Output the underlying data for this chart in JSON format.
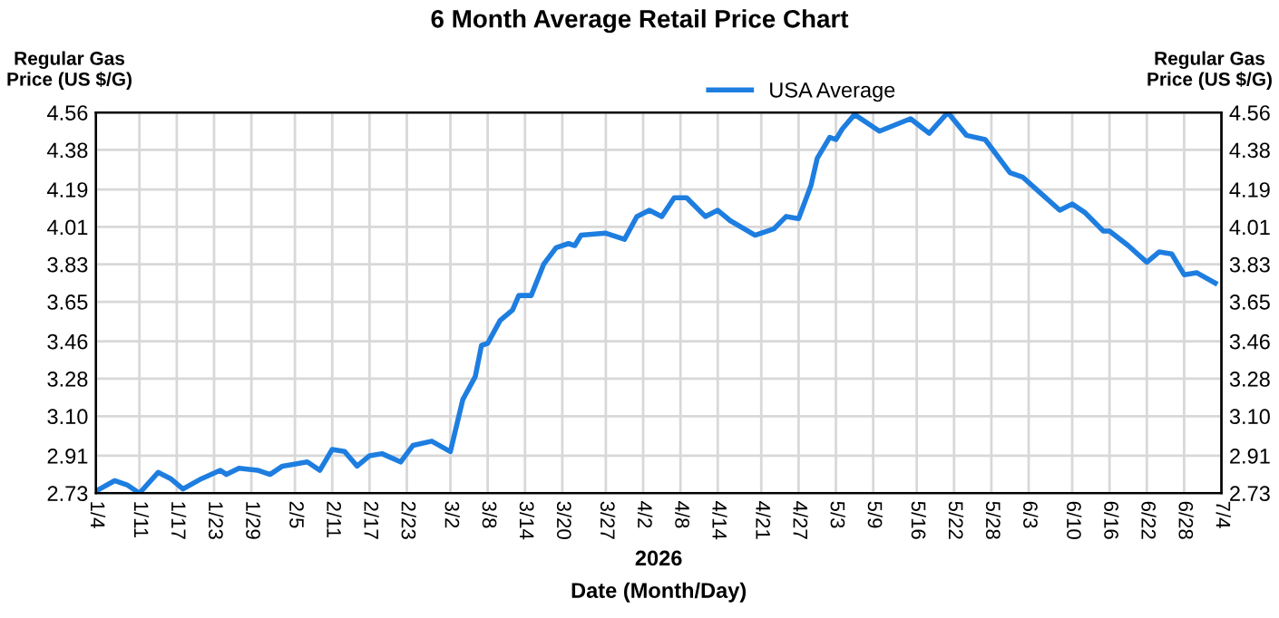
{
  "chart_data": {
    "type": "line",
    "title": "6 Month Average Retail Price Chart",
    "xlabel": "2026\nDate (Month/Day)",
    "ylabel": "Regular Gas\nPrice (US $/G)",
    "y2label": "Regular Gas\nPrice (US $/G)",
    "series": [
      {
        "name": "USA Average",
        "color": "#1e7ee0",
        "x": [
          "2026-01-04",
          "2026-01-07",
          "2026-01-09",
          "2026-01-11",
          "2026-01-14",
          "2026-01-16",
          "2026-01-18",
          "2026-01-21",
          "2026-01-24",
          "2026-01-25",
          "2026-01-27",
          "2026-01-30",
          "2026-02-01",
          "2026-02-03",
          "2026-02-07",
          "2026-02-09",
          "2026-02-11",
          "2026-02-13",
          "2026-02-15",
          "2026-02-17",
          "2026-02-19",
          "2026-02-22",
          "2026-02-24",
          "2026-02-27",
          "2026-03-02",
          "2026-03-04",
          "2026-03-06",
          "2026-03-07",
          "2026-03-08",
          "2026-03-10",
          "2026-03-12",
          "2026-03-13",
          "2026-03-15",
          "2026-03-17",
          "2026-03-19",
          "2026-03-21",
          "2026-03-22",
          "2026-03-23",
          "2026-03-27",
          "2026-03-30",
          "2026-04-01",
          "2026-04-03",
          "2026-04-05",
          "2026-04-07",
          "2026-04-09",
          "2026-04-12",
          "2026-04-14",
          "2026-04-16",
          "2026-04-20",
          "2026-04-23",
          "2026-04-25",
          "2026-04-27",
          "2026-04-29",
          "2026-04-30",
          "2026-05-02",
          "2026-05-03",
          "2026-05-04",
          "2026-05-06",
          "2026-05-10",
          "2026-05-15",
          "2026-05-18",
          "2026-05-21",
          "2026-05-24",
          "2026-05-27",
          "2026-05-31",
          "2026-06-02",
          "2026-06-05",
          "2026-06-08",
          "2026-06-10",
          "2026-06-12",
          "2026-06-15",
          "2026-06-16",
          "2026-06-19",
          "2026-06-22",
          "2026-06-24",
          "2026-06-26",
          "2026-06-28",
          "2026-06-30",
          "2026-07-03"
        ],
        "values": [
          2.74,
          2.79,
          2.77,
          2.73,
          2.83,
          2.8,
          2.75,
          2.8,
          2.84,
          2.82,
          2.85,
          2.84,
          2.82,
          2.86,
          2.88,
          2.84,
          2.94,
          2.93,
          2.86,
          2.91,
          2.92,
          2.88,
          2.96,
          2.98,
          2.93,
          3.18,
          3.29,
          3.44,
          3.45,
          3.56,
          3.61,
          3.68,
          3.68,
          3.83,
          3.91,
          3.93,
          3.92,
          3.97,
          3.98,
          3.95,
          4.06,
          4.09,
          4.06,
          4.15,
          4.15,
          4.06,
          4.09,
          4.04,
          3.97,
          4.0,
          4.06,
          4.05,
          4.21,
          4.34,
          4.44,
          4.43,
          4.48,
          4.55,
          4.47,
          4.53,
          4.46,
          4.56,
          4.45,
          4.43,
          4.27,
          4.25,
          4.17,
          4.09,
          4.12,
          4.08,
          3.99,
          3.99,
          3.92,
          3.84,
          3.89,
          3.88,
          3.78,
          3.79,
          3.74
        ]
      }
    ],
    "xlim": [
      "2026-01-04",
      "2026-07-04"
    ],
    "xticks": [
      {
        "value": "2026-01-04",
        "label": "1/4"
      },
      {
        "value": "2026-01-11",
        "label": "1/11"
      },
      {
        "value": "2026-01-17",
        "label": "1/17"
      },
      {
        "value": "2026-01-23",
        "label": "1/23"
      },
      {
        "value": "2026-01-29",
        "label": "1/29"
      },
      {
        "value": "2026-02-05",
        "label": "2/5"
      },
      {
        "value": "2026-02-11",
        "label": "2/11"
      },
      {
        "value": "2026-02-17",
        "label": "2/17"
      },
      {
        "value": "2026-02-23",
        "label": "2/23"
      },
      {
        "value": "2026-03-02",
        "label": "3/2"
      },
      {
        "value": "2026-03-08",
        "label": "3/8"
      },
      {
        "value": "2026-03-14",
        "label": "3/14"
      },
      {
        "value": "2026-03-20",
        "label": "3/20"
      },
      {
        "value": "2026-03-27",
        "label": "3/27"
      },
      {
        "value": "2026-04-02",
        "label": "4/2"
      },
      {
        "value": "2026-04-08",
        "label": "4/8"
      },
      {
        "value": "2026-04-14",
        "label": "4/14"
      },
      {
        "value": "2026-04-21",
        "label": "4/21"
      },
      {
        "value": "2026-04-27",
        "label": "4/27"
      },
      {
        "value": "2026-05-03",
        "label": "5/3"
      },
      {
        "value": "2026-05-09",
        "label": "5/9"
      },
      {
        "value": "2026-05-16",
        "label": "5/16"
      },
      {
        "value": "2026-05-22",
        "label": "5/22"
      },
      {
        "value": "2026-05-28",
        "label": "5/28"
      },
      {
        "value": "2026-06-03",
        "label": "6/3"
      },
      {
        "value": "2026-06-10",
        "label": "6/10"
      },
      {
        "value": "2026-06-16",
        "label": "6/16"
      },
      {
        "value": "2026-06-22",
        "label": "6/22"
      },
      {
        "value": "2026-06-28",
        "label": "6/28"
      },
      {
        "value": "2026-07-04",
        "label": "7/4"
      }
    ],
    "ylim": [
      2.73,
      4.56
    ],
    "yticks": [
      2.73,
      2.91,
      {
        "value": 3.1,
        "label": "3.10"
      },
      3.28,
      3.46,
      3.65,
      3.83,
      4.01,
      4.19,
      4.38,
      4.56
    ],
    "y2lim": [
      2.73,
      4.56
    ],
    "y2ticks": [
      2.73,
      2.91,
      {
        "value": 3.1,
        "label": "3.10"
      },
      3.28,
      3.46,
      3.65,
      3.83,
      4.01,
      4.19,
      4.38,
      4.56
    ],
    "grid": true,
    "legend": "top right",
    "marker": "none",
    "line_style": "solid"
  }
}
